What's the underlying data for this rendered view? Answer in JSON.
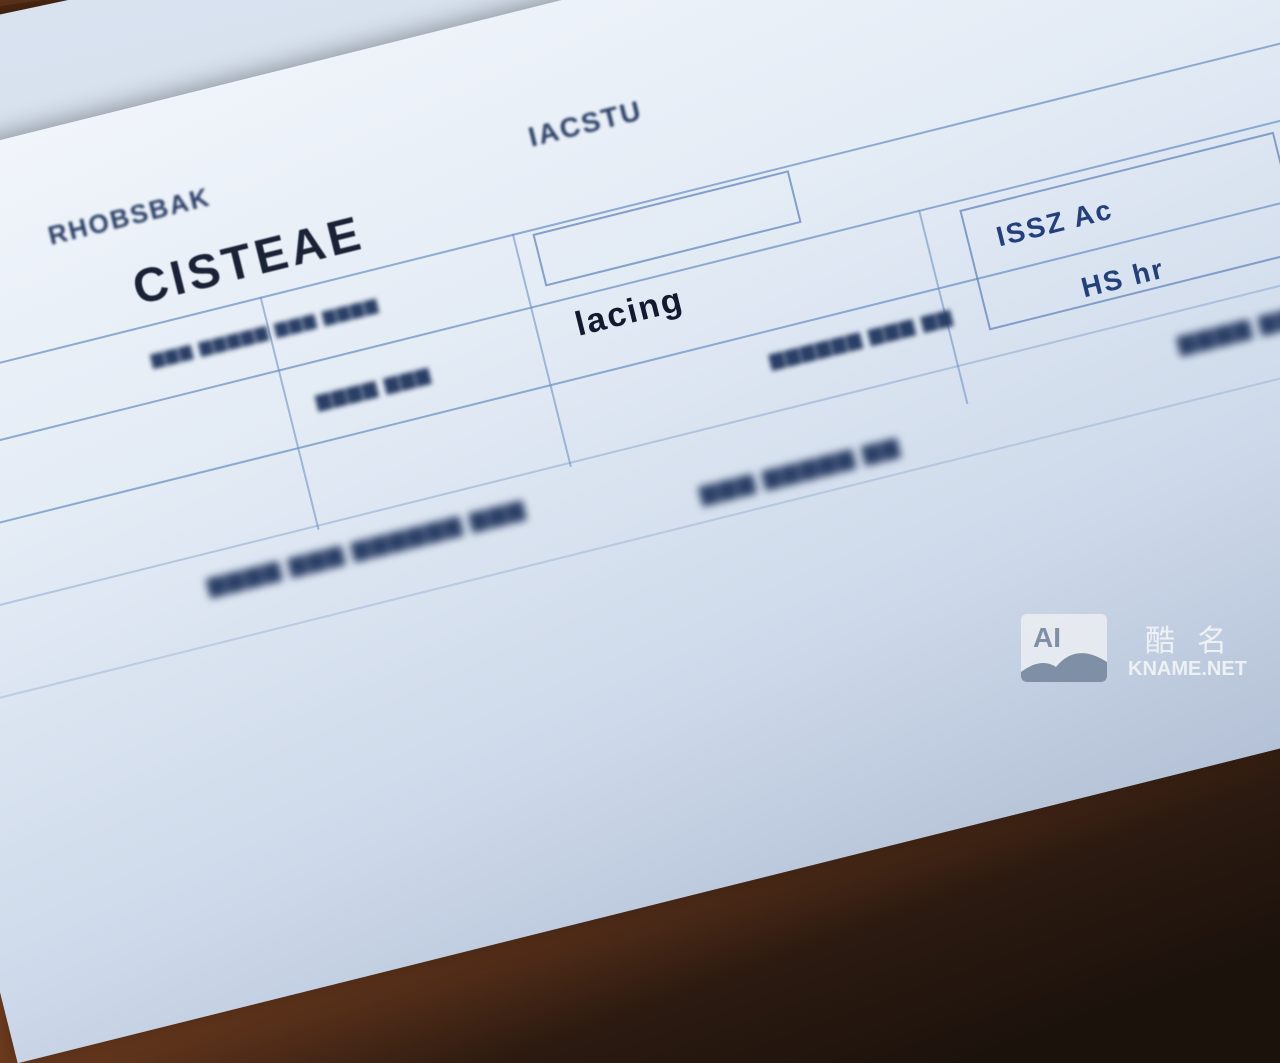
{
  "document": {
    "heading": "CISTEAE",
    "fragments": [
      "RHOBSBAK",
      "IACSTU",
      "lacing",
      "ISSZ Ac",
      "HS hr"
    ]
  },
  "watermark": {
    "logo_text": "AI",
    "chinese_name": "酷名",
    "site": "KNAME.NET"
  },
  "colors": {
    "paper": "#e3ebf5",
    "form_lines": "#6f93c4",
    "table": "#8a4a25"
  }
}
